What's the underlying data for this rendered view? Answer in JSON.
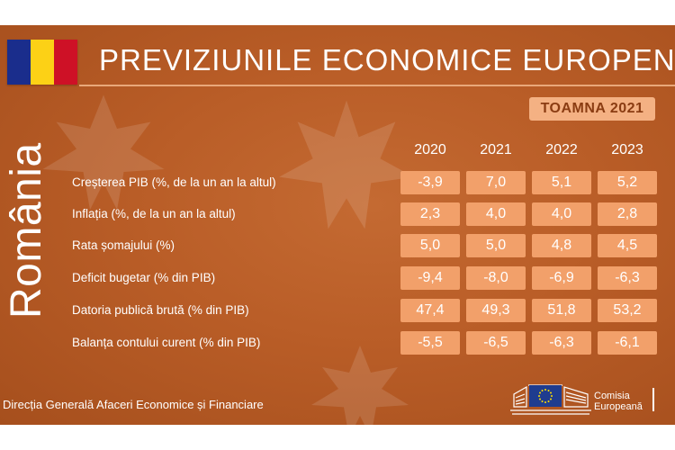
{
  "header": {
    "title": "PREVIZIUNILE ECONOMICE EUROPENE",
    "season": "TOAMNA 2021",
    "country": "România"
  },
  "flag_colors": [
    "#1a2d8c",
    "#fcd116",
    "#ce1126"
  ],
  "table": {
    "years": [
      "2020",
      "2021",
      "2022",
      "2023"
    ],
    "rows": [
      {
        "label": "Creșterea PIB (%, de la un an la altul)",
        "values": [
          "-3,9",
          "7,0",
          "5,1",
          "5,2"
        ]
      },
      {
        "label": "Inflația (%, de la un an la altul)",
        "values": [
          "2,3",
          "4,0",
          "4,0",
          "2,8"
        ]
      },
      {
        "label": "Rata șomajului (%)",
        "values": [
          "5,0",
          "5,0",
          "4,8",
          "4,5"
        ]
      },
      {
        "label": "Deficit bugetar (% din PIB)",
        "values": [
          "-9,4",
          "-8,0",
          "-6,9",
          "-6,3"
        ]
      },
      {
        "label": "Datoria publică brută (% din PIB)",
        "values": [
          "47,4",
          "49,3",
          "51,8",
          "53,2"
        ]
      },
      {
        "label": "Balanța contului curent (% din PIB)",
        "values": [
          "-5,5",
          "-6,5",
          "-6,3",
          "-6,1"
        ]
      }
    ]
  },
  "footer": {
    "department": "Direcția Generală Afaceri Economice și Financiare",
    "logo_line1": "Comisia",
    "logo_line2": "Europeană"
  }
}
